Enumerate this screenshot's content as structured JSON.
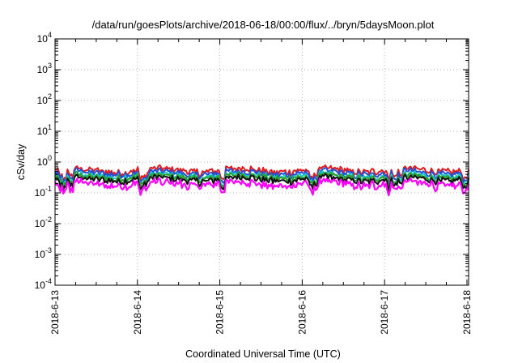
{
  "chart_data": {
    "type": "line",
    "title": "/data/run/goesPlots/archive/2018-06-18/00:00/flux/../bryn/5daysMoon.plot",
    "xlabel": "Coordinated Universal Time (UTC)",
    "ylabel": "cSv/day",
    "yscale": "log",
    "ylim": [
      0.0001,
      10000
    ],
    "xlim": [
      "2018-06-13",
      "2018-06-18"
    ],
    "grid": true,
    "y_ticks": [
      {
        "base": "10",
        "exp": "-4"
      },
      {
        "base": "10",
        "exp": "-3"
      },
      {
        "base": "10",
        "exp": "-2"
      },
      {
        "base": "10",
        "exp": "-1"
      },
      {
        "base": "10",
        "exp": "0"
      },
      {
        "base": "10",
        "exp": "1"
      },
      {
        "base": "10",
        "exp": "2"
      },
      {
        "base": "10",
        "exp": "3"
      },
      {
        "base": "10",
        "exp": "4"
      }
    ],
    "x_ticks": [
      "2018-6-13",
      "2018-6-14",
      "2018-6-15",
      "2018-6-16",
      "2018-6-17",
      "2018-6-18"
    ],
    "series": [
      {
        "color": "#e31a1c",
        "level": 0.55
      },
      {
        "color": "#1f4fd8",
        "level": 0.45
      },
      {
        "color": "#17c8c8",
        "level": 0.36
      },
      {
        "color": "#2ca02c",
        "level": 0.33
      },
      {
        "color": "#111111",
        "level": 0.28
      },
      {
        "color": "#ff00ff",
        "level": 0.2
      }
    ]
  }
}
